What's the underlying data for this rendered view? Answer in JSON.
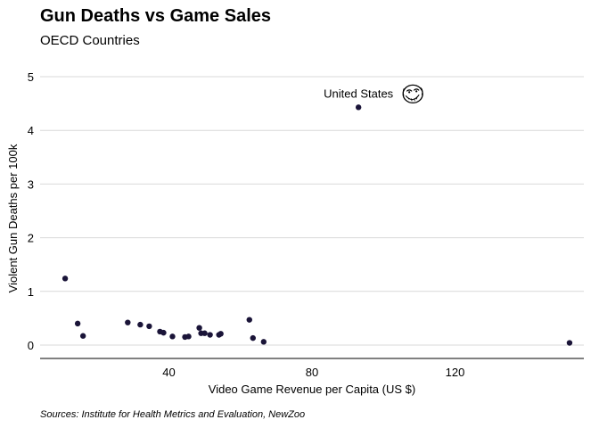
{
  "chart_data": {
    "type": "scatter",
    "title": "Gun Deaths vs Game Sales",
    "subtitle": "OECD Countries",
    "xlabel": "Video Game Revenue per Capita (US $)",
    "ylabel": "Violent Gun Deaths per 100k",
    "caption": "Sources: Institute for Health Metrics and Evaluation, NewZoo",
    "xlim": [
      4,
      156
    ],
    "ylim": [
      -0.25,
      5.3
    ],
    "x_ticks": [
      40,
      80,
      120
    ],
    "y_ticks": [
      0,
      1,
      2,
      3,
      4,
      5
    ],
    "grid": "horizontal major",
    "point_color": "#1a1438",
    "points": [
      {
        "x": 11,
        "y": 1.24
      },
      {
        "x": 14.5,
        "y": 0.4
      },
      {
        "x": 16,
        "y": 0.17
      },
      {
        "x": 28.5,
        "y": 0.42
      },
      {
        "x": 32,
        "y": 0.38
      },
      {
        "x": 34.5,
        "y": 0.35
      },
      {
        "x": 37.5,
        "y": 0.25
      },
      {
        "x": 38.5,
        "y": 0.23
      },
      {
        "x": 41,
        "y": 0.16
      },
      {
        "x": 44.5,
        "y": 0.15
      },
      {
        "x": 45.5,
        "y": 0.16
      },
      {
        "x": 48.5,
        "y": 0.32
      },
      {
        "x": 49,
        "y": 0.22
      },
      {
        "x": 50,
        "y": 0.22
      },
      {
        "x": 51.5,
        "y": 0.19
      },
      {
        "x": 54,
        "y": 0.19
      },
      {
        "x": 54.5,
        "y": 0.21
      },
      {
        "x": 62.5,
        "y": 0.47
      },
      {
        "x": 63.5,
        "y": 0.13
      },
      {
        "x": 66.5,
        "y": 0.06
      },
      {
        "x": 93,
        "y": 4.43,
        "label": "United States"
      },
      {
        "x": 152,
        "y": 0.04
      }
    ],
    "annotation_icon": "troll-face-icon"
  }
}
